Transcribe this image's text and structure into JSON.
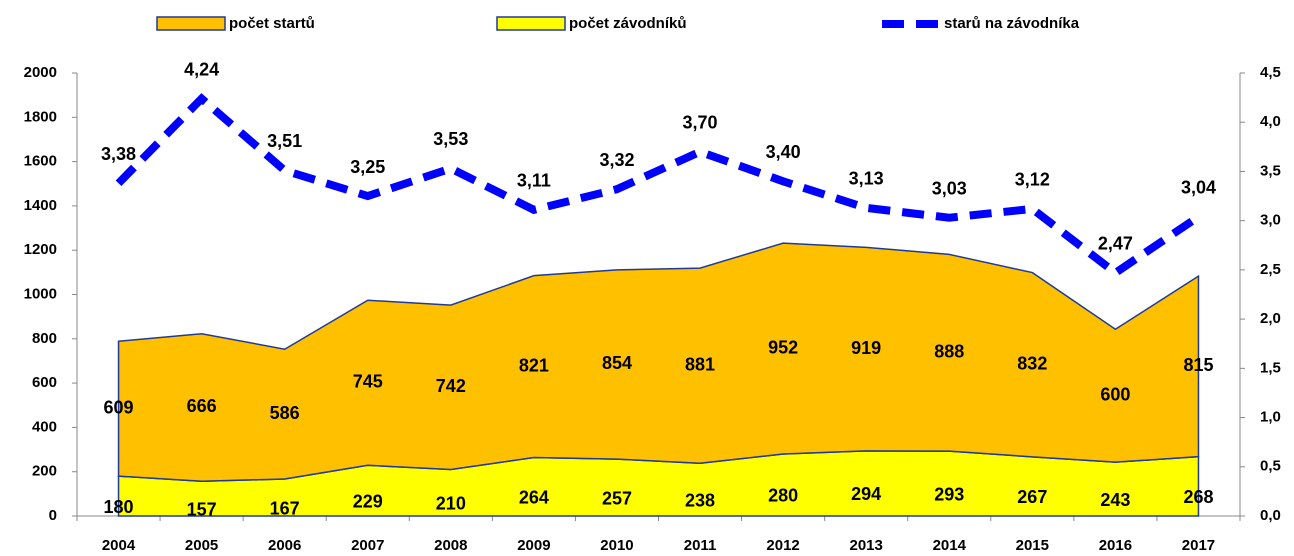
{
  "chart_data": {
    "type": "area",
    "stacked": true,
    "grid": false,
    "categories": [
      "2004",
      "2005",
      "2006",
      "2007",
      "2008",
      "2009",
      "2010",
      "2011",
      "2012",
      "2013",
      "2014",
      "2015",
      "2016",
      "2017"
    ],
    "series": [
      {
        "name": "počet závodníků",
        "color": "#ffff00",
        "values": [
          180,
          157,
          167,
          229,
          210,
          264,
          257,
          238,
          280,
          294,
          293,
          267,
          243,
          268
        ]
      },
      {
        "name": "počet startů",
        "color": "#ffc000",
        "values": [
          609,
          666,
          586,
          745,
          742,
          821,
          854,
          881,
          952,
          919,
          888,
          832,
          600,
          815
        ]
      },
      {
        "name": "starů na závodníka",
        "color": "#0000ff",
        "axis": "y2",
        "line_style": "dashed",
        "values": [
          3.38,
          4.24,
          3.51,
          3.25,
          3.53,
          3.11,
          3.32,
          3.7,
          3.4,
          3.13,
          3.03,
          3.12,
          2.47,
          3.04
        ],
        "value_labels": [
          "3,38",
          "4,24",
          "3,51",
          "3,25",
          "3,53",
          "3,11",
          "3,32",
          "3,70",
          "3,40",
          "3,13",
          "3,03",
          "3,12",
          "2,47",
          "3,04"
        ]
      }
    ],
    "legend_order": [
      1,
      0,
      2
    ],
    "ylim": [
      0,
      2000
    ],
    "yticks": [
      0,
      200,
      400,
      600,
      800,
      1000,
      1200,
      1400,
      1600,
      1800,
      2000
    ],
    "y2lim": [
      0,
      4.5
    ],
    "y2ticks": [
      {
        "value": 0,
        "label": "0,0"
      },
      {
        "value": 0.5,
        "label": "0,5"
      },
      {
        "value": 1,
        "label": "1,0"
      },
      {
        "value": 1.5,
        "label": "1,5"
      },
      {
        "value": 2,
        "label": "2,0"
      },
      {
        "value": 2.5,
        "label": "2,5"
      },
      {
        "value": 3,
        "label": "3,0"
      },
      {
        "value": 3.5,
        "label": "3,5"
      },
      {
        "value": 4,
        "label": "4,0"
      },
      {
        "value": 4.5,
        "label": "4,5"
      }
    ]
  }
}
